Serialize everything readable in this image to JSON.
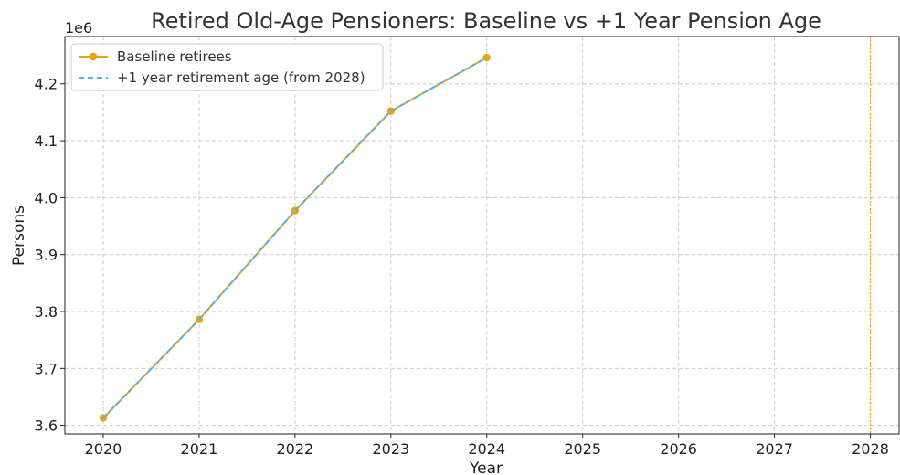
{
  "chart_data": {
    "type": "line",
    "title": "Retired Old-Age Pensioners: Baseline vs +1 Year Pension Age",
    "xlabel": "Year",
    "ylabel": "Persons",
    "y_offset_label": "1e6",
    "x_ticks": [
      "2020",
      "2021",
      "2022",
      "2023",
      "2024",
      "2025",
      "2026",
      "2027",
      "2028"
    ],
    "y_ticks": [
      "3.6",
      "3.7",
      "3.8",
      "3.9",
      "4.0",
      "4.1",
      "4.2"
    ],
    "xlim": [
      2019.6,
      2028.3
    ],
    "ylim": [
      3585000,
      4283000
    ],
    "grid": true,
    "legend_position": "top-left",
    "series": [
      {
        "name": "Baseline retirees",
        "color": "#E8A317",
        "style": "solid-with-markers",
        "x": [
          2020,
          2021,
          2022,
          2023,
          2024
        ],
        "y": [
          3613000,
          3786000,
          3977000,
          4152000,
          4246000
        ]
      },
      {
        "name": "+1 year retirement age (from 2028)",
        "color": "#4FB3E8",
        "style": "dashed",
        "x": [
          2020,
          2021,
          2022,
          2023,
          2024
        ],
        "y": [
          3613000,
          3786000,
          3977000,
          4152000,
          4246000
        ]
      }
    ],
    "vline": {
      "x": 2028,
      "color": "#E8A317",
      "style": "dotted"
    }
  }
}
